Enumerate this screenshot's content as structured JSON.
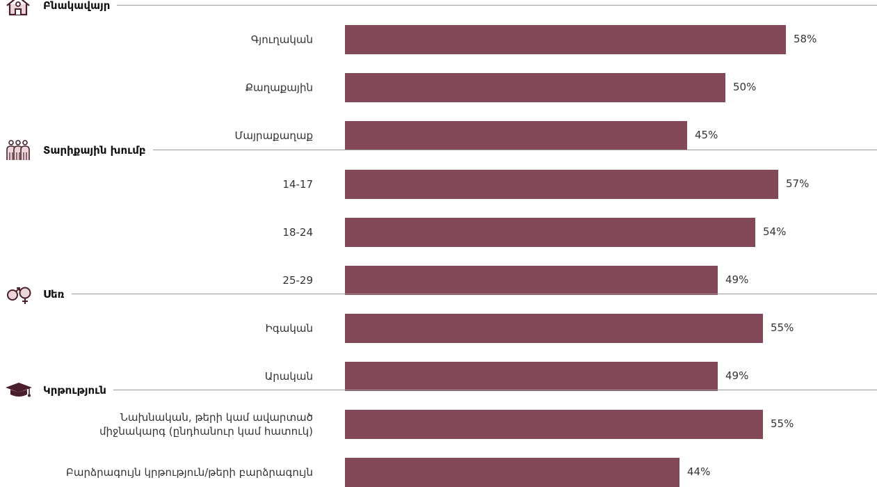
{
  "chart_data": {
    "type": "bar",
    "orientation": "horizontal",
    "bar_color": "#844959",
    "icon_color": "#4a1f2d",
    "icon_fill": "#ecd6da",
    "xlim": [
      0,
      65
    ],
    "grid": false,
    "groups": [
      {
        "title": "Բնակավայր",
        "icon": "house-icon",
        "categories": [
          "Գյուղական",
          "Քաղաքային",
          "Մայրաքաղաք"
        ],
        "values": [
          58,
          50,
          45
        ],
        "labels": [
          "58%",
          "50%",
          "45%"
        ]
      },
      {
        "title": "Տարիքային խումբ",
        "icon": "people-group-icon",
        "categories": [
          "14-17",
          "18-24",
          "25-29"
        ],
        "values": [
          57,
          54,
          49
        ],
        "labels": [
          "57%",
          "54%",
          "49%"
        ]
      },
      {
        "title": "Սեռ",
        "icon": "gender-symbols-icon",
        "categories": [
          "Իգական",
          "Արական"
        ],
        "values": [
          55,
          49
        ],
        "labels": [
          "55%",
          "49%"
        ]
      },
      {
        "title": "Կրթություն",
        "icon": "graduation-cap-icon",
        "categories": [
          "Նախնական, թերի կամ ավարտած\nմիջնակարգ (ընդհանուր կամ հատուկ)",
          "Բարձրագույն կրթություն/թերի բարձրագույն"
        ],
        "values": [
          55,
          44
        ],
        "labels": [
          "55%",
          "44%"
        ]
      }
    ]
  }
}
